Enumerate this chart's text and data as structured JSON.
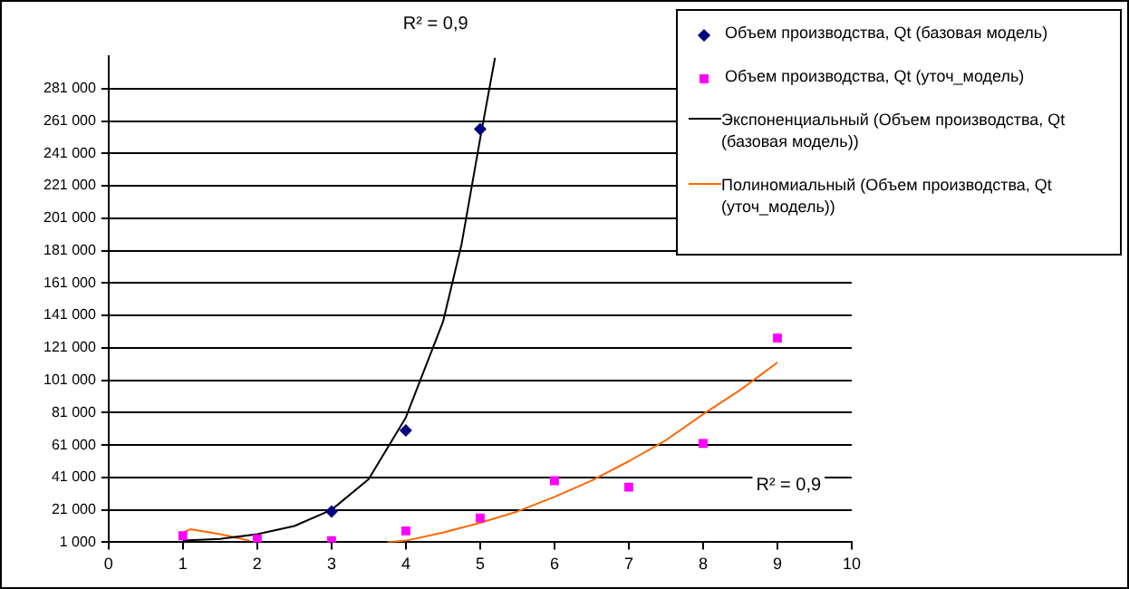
{
  "chart_data": {
    "type": "scatter",
    "annotations": [
      "R² = 0,9",
      "R² = 0,9"
    ],
    "series": [
      {
        "name": "Объем производства, Qt (базовая модель)",
        "marker": "diamond",
        "color": "#000080",
        "x": [
          3,
          4,
          5
        ],
        "values": [
          20000,
          70000,
          256000
        ]
      },
      {
        "name": "Объем производства, Qt (уточ_модель)",
        "marker": "square",
        "color": "#ff00ff",
        "x": [
          1,
          2,
          3,
          4,
          5,
          6,
          7,
          8,
          9
        ],
        "values": [
          5000,
          3000,
          2000,
          8000,
          16000,
          39000,
          35000,
          62000,
          127000
        ]
      },
      {
        "name": "Экспоненциальный (Объем производства, Qt (базовая модель))",
        "type": "line",
        "marker": "none",
        "line_style": "solid",
        "color": "#000000",
        "x": [
          1,
          1.5,
          2,
          2.5,
          3,
          3.5,
          4,
          4.5,
          4.75,
          5,
          5.2
        ],
        "values": [
          2000,
          3000,
          6000,
          11000,
          21000,
          40000,
          78000,
          137000,
          185000,
          250000,
          300000
        ]
      },
      {
        "name": "Полиномиальный (Объем производства, Qt (уточ_модель))",
        "type": "line",
        "marker": "none",
        "line_style": "solid",
        "color": "#ff6600",
        "x": [
          1,
          1.1,
          1.5,
          1.9,
          2.8,
          3.75,
          4,
          4.5,
          5,
          5.5,
          6,
          6.5,
          7,
          7.5,
          8,
          8.5,
          9
        ],
        "values": [
          7000,
          9000,
          6000,
          2000,
          null,
          1000,
          2000,
          7000,
          13000,
          20000,
          29000,
          39000,
          51000,
          64000,
          80000,
          95000,
          112000
        ]
      }
    ],
    "xlim": [
      0,
      10
    ],
    "xticks": [
      0,
      1,
      2,
      3,
      4,
      5,
      6,
      7,
      8,
      9,
      10
    ],
    "ylim": [
      1000,
      301000
    ],
    "yticks": [
      {
        "value": 1000,
        "label": "1 000"
      },
      {
        "value": 21000,
        "label": "21 000"
      },
      {
        "value": 41000,
        "label": "41 000"
      },
      {
        "value": 61000,
        "label": "61 000"
      },
      {
        "value": 81000,
        "label": "81 000"
      },
      {
        "value": 101000,
        "label": "101 000"
      },
      {
        "value": 121000,
        "label": "121 000"
      },
      {
        "value": 141000,
        "label": "141 000"
      },
      {
        "value": 161000,
        "label": "161 000"
      },
      {
        "value": 181000,
        "label": "181 000"
      },
      {
        "value": 201000,
        "label": "201 000"
      },
      {
        "value": 221000,
        "label": "221 000"
      },
      {
        "value": 241000,
        "label": "241 000"
      },
      {
        "value": 261000,
        "label": "261 000"
      },
      {
        "value": 281000,
        "label": "281 000"
      }
    ],
    "grid": "y",
    "legend": "top right"
  }
}
